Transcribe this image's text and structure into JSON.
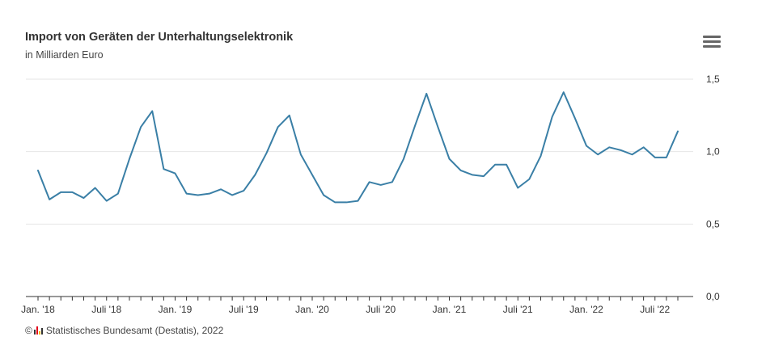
{
  "header": {
    "title": "Import von Geräten der Unterhaltungselektronik",
    "subtitle": "in Milliarden Euro",
    "menu_icon": "hamburger-menu-icon"
  },
  "credits": {
    "copyright_symbol": "©",
    "logo_icon": "destatis-logo-icon",
    "text": "Statistisches Bundesamt (Destatis), 2022"
  },
  "colors": {
    "line": "#3a7fa6",
    "grid": "#e6e6e6",
    "axis": "#333333",
    "text": "#333333"
  },
  "chart_data": {
    "type": "line",
    "title": "Import von Geräten der Unterhaltungselektronik",
    "subtitle": "in Milliarden Euro",
    "ylim": [
      0,
      1.5
    ],
    "y_ticks": [
      {
        "value": 0,
        "label": "0,0"
      },
      {
        "value": 0.5,
        "label": "0,5"
      },
      {
        "value": 1.0,
        "label": "1,0"
      },
      {
        "value": 1.5,
        "label": "1,5"
      }
    ],
    "x_tick_labels": [
      {
        "index": 0,
        "label": "Jan. '18"
      },
      {
        "index": 6,
        "label": "Juli '18"
      },
      {
        "index": 12,
        "label": "Jan. '19"
      },
      {
        "index": 18,
        "label": "Juli '19"
      },
      {
        "index": 24,
        "label": "Jan. '20"
      },
      {
        "index": 30,
        "label": "Juli '20"
      },
      {
        "index": 36,
        "label": "Jan. '21"
      },
      {
        "index": 42,
        "label": "Juli '21"
      },
      {
        "index": 48,
        "label": "Jan. '22"
      },
      {
        "index": 54,
        "label": "Juli '22"
      }
    ],
    "grid": true,
    "y_axis_position": "right",
    "series": [
      {
        "values": [
          0.87,
          0.67,
          0.72,
          0.72,
          0.68,
          0.75,
          0.66,
          0.71,
          0.95,
          1.17,
          1.28,
          0.88,
          0.85,
          0.71,
          0.7,
          0.71,
          0.74,
          0.7,
          0.73,
          0.84,
          0.99,
          1.17,
          1.25,
          0.98,
          0.84,
          0.7,
          0.65,
          0.65,
          0.66,
          0.79,
          0.77,
          0.79,
          0.95,
          1.18,
          1.4,
          1.17,
          0.95,
          0.87,
          0.84,
          0.83,
          0.91,
          0.91,
          0.75,
          0.81,
          0.97,
          1.24,
          1.41,
          1.23,
          1.04,
          0.98,
          1.03,
          1.01,
          0.98,
          1.03,
          0.96,
          0.96,
          1.14
        ]
      }
    ]
  }
}
